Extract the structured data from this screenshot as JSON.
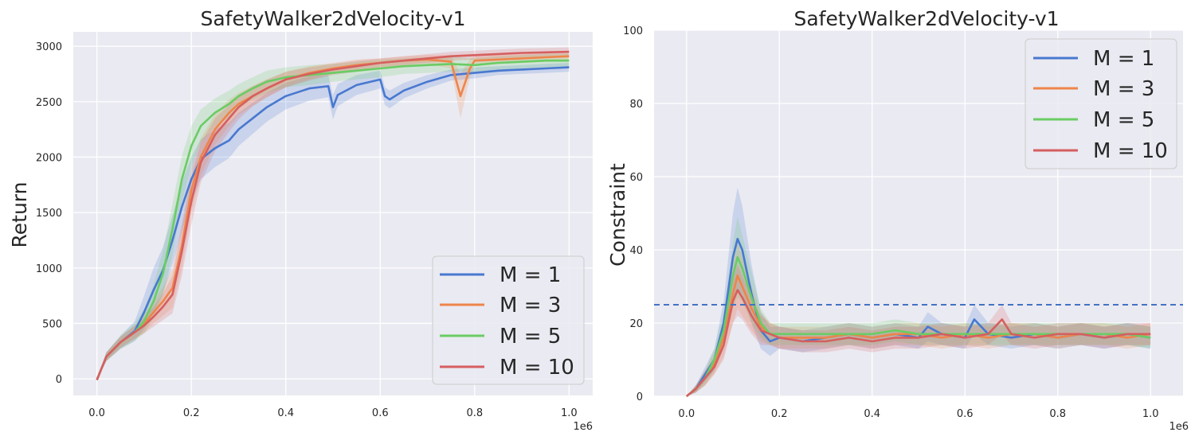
{
  "chart_data": [
    {
      "type": "line",
      "title": "SafetyWalker2dVelocity-v1",
      "xlabel": "",
      "ylabel": "Return",
      "x_multiplier_label": "1e6",
      "xlim": [
        -0.05,
        1.05
      ],
      "ylim": [
        -150,
        3130
      ],
      "xticks": [
        0.0,
        0.2,
        0.4,
        0.6,
        0.8,
        1.0
      ],
      "xtick_labels": [
        "0.0",
        "0.2",
        "0.4",
        "0.6",
        "0.8",
        "1.0"
      ],
      "yticks": [
        0,
        500,
        1000,
        1500,
        2000,
        2500,
        3000
      ],
      "ytick_labels": [
        "0",
        "500",
        "1000",
        "1500",
        "2000",
        "2500",
        "3000"
      ],
      "legend_position": "lower-right",
      "series": [
        {
          "name": "M = 1",
          "color": "#4878d0",
          "x": [
            0,
            0.02,
            0.05,
            0.08,
            0.1,
            0.12,
            0.14,
            0.16,
            0.18,
            0.2,
            0.22,
            0.25,
            0.28,
            0.3,
            0.33,
            0.36,
            0.4,
            0.45,
            0.49,
            0.5,
            0.51,
            0.55,
            0.6,
            0.61,
            0.62,
            0.65,
            0.7,
            0.75,
            0.8,
            0.85,
            0.9,
            0.95,
            1.0
          ],
          "y": [
            -10,
            200,
            330,
            430,
            600,
            800,
            980,
            1250,
            1550,
            1800,
            1980,
            2080,
            2150,
            2250,
            2350,
            2450,
            2550,
            2620,
            2640,
            2450,
            2560,
            2650,
            2700,
            2550,
            2520,
            2600,
            2680,
            2740,
            2760,
            2780,
            2790,
            2800,
            2810
          ],
          "band": [
            0,
            40,
            60,
            90,
            150,
            200,
            210,
            220,
            220,
            200,
            180,
            170,
            160,
            150,
            140,
            130,
            120,
            110,
            100,
            110,
            100,
            90,
            80,
            80,
            80,
            70,
            60,
            50,
            50,
            40,
            40,
            40,
            40
          ]
        },
        {
          "name": "M = 3",
          "color": "#ee854a",
          "x": [
            0,
            0.02,
            0.05,
            0.08,
            0.1,
            0.12,
            0.14,
            0.16,
            0.18,
            0.2,
            0.22,
            0.25,
            0.28,
            0.3,
            0.33,
            0.36,
            0.4,
            0.45,
            0.5,
            0.55,
            0.6,
            0.65,
            0.7,
            0.75,
            0.77,
            0.79,
            0.8,
            0.85,
            0.9,
            0.95,
            1.0
          ],
          "y": [
            -10,
            200,
            330,
            420,
            500,
            600,
            700,
            820,
            1200,
            1700,
            2000,
            2250,
            2400,
            2480,
            2550,
            2620,
            2700,
            2760,
            2800,
            2830,
            2850,
            2870,
            2880,
            2860,
            2550,
            2800,
            2870,
            2880,
            2890,
            2900,
            2910
          ],
          "band": [
            0,
            40,
            50,
            60,
            80,
            100,
            130,
            180,
            200,
            200,
            170,
            140,
            120,
            100,
            90,
            80,
            70,
            60,
            50,
            50,
            40,
            40,
            40,
            60,
            200,
            80,
            40,
            40,
            40,
            40,
            40
          ]
        },
        {
          "name": "M = 5",
          "color": "#6acc64",
          "x": [
            0,
            0.02,
            0.05,
            0.08,
            0.1,
            0.12,
            0.14,
            0.16,
            0.18,
            0.2,
            0.22,
            0.25,
            0.28,
            0.3,
            0.33,
            0.36,
            0.4,
            0.45,
            0.5,
            0.55,
            0.6,
            0.65,
            0.7,
            0.75,
            0.8,
            0.85,
            0.9,
            0.95,
            1.0
          ],
          "y": [
            -10,
            200,
            330,
            420,
            520,
            700,
            950,
            1350,
            1800,
            2100,
            2280,
            2400,
            2480,
            2550,
            2620,
            2680,
            2720,
            2740,
            2760,
            2780,
            2800,
            2820,
            2830,
            2840,
            2830,
            2850,
            2860,
            2870,
            2870
          ],
          "band": [
            0,
            40,
            60,
            80,
            110,
            150,
            200,
            230,
            210,
            180,
            150,
            130,
            120,
            110,
            100,
            100,
            90,
            90,
            80,
            80,
            80,
            70,
            70,
            70,
            60,
            60,
            60,
            60,
            60
          ]
        },
        {
          "name": "M = 10",
          "color": "#d65f5f",
          "x": [
            0,
            0.02,
            0.05,
            0.08,
            0.1,
            0.12,
            0.14,
            0.16,
            0.18,
            0.2,
            0.22,
            0.25,
            0.28,
            0.3,
            0.33,
            0.36,
            0.4,
            0.45,
            0.5,
            0.55,
            0.6,
            0.65,
            0.7,
            0.75,
            0.8,
            0.85,
            0.9,
            0.95,
            1.0
          ],
          "y": [
            -10,
            200,
            330,
            420,
            480,
            560,
            650,
            760,
            1150,
            1600,
            1950,
            2200,
            2350,
            2450,
            2550,
            2620,
            2700,
            2750,
            2790,
            2820,
            2850,
            2870,
            2890,
            2910,
            2920,
            2930,
            2940,
            2945,
            2950
          ],
          "band": [
            0,
            40,
            50,
            60,
            70,
            90,
            120,
            170,
            220,
            210,
            180,
            150,
            120,
            110,
            90,
            80,
            70,
            60,
            50,
            50,
            40,
            40,
            40,
            40,
            40,
            40,
            40,
            40,
            40
          ]
        }
      ]
    },
    {
      "type": "line",
      "title": "SafetyWalker2dVelocity-v1",
      "xlabel": "",
      "ylabel": "Constraint",
      "x_multiplier_label": "1e6",
      "xlim": [
        -0.07,
        1.07
      ],
      "ylim": [
        0,
        100
      ],
      "xticks": [
        0.0,
        0.2,
        0.4,
        0.6,
        0.8,
        1.0
      ],
      "xtick_labels": [
        "0.0",
        "0.2",
        "0.4",
        "0.6",
        "0.8",
        "1.0"
      ],
      "yticks": [
        0,
        20,
        40,
        60,
        80,
        100
      ],
      "ytick_labels": [
        "0",
        "20",
        "40",
        "60",
        "80",
        "100"
      ],
      "threshold": 25,
      "threshold_color": "#4472c4",
      "legend_position": "top-right",
      "series": [
        {
          "name": "M = 1",
          "color": "#4878d0",
          "x": [
            0,
            0.02,
            0.04,
            0.06,
            0.08,
            0.1,
            0.11,
            0.12,
            0.14,
            0.16,
            0.18,
            0.2,
            0.25,
            0.3,
            0.35,
            0.4,
            0.45,
            0.5,
            0.52,
            0.55,
            0.6,
            0.62,
            0.65,
            0.7,
            0.75,
            0.8,
            0.85,
            0.9,
            0.95,
            1.0
          ],
          "y": [
            0,
            2,
            6,
            10,
            20,
            38,
            43,
            40,
            28,
            18,
            15,
            16,
            15,
            16,
            17,
            16,
            17,
            16,
            19,
            17,
            16,
            21,
            17,
            16,
            17,
            16,
            17,
            16,
            17,
            16
          ],
          "band": [
            0,
            1,
            2,
            3,
            6,
            12,
            14,
            12,
            8,
            5,
            4,
            3,
            3,
            3,
            3,
            3,
            3,
            3,
            4,
            3,
            3,
            4,
            3,
            3,
            3,
            3,
            3,
            3,
            3,
            3
          ]
        },
        {
          "name": "M = 3",
          "color": "#ee854a",
          "x": [
            0,
            0.02,
            0.04,
            0.06,
            0.08,
            0.1,
            0.11,
            0.12,
            0.14,
            0.16,
            0.18,
            0.2,
            0.25,
            0.3,
            0.35,
            0.4,
            0.45,
            0.5,
            0.55,
            0.6,
            0.65,
            0.7,
            0.75,
            0.8,
            0.85,
            0.9,
            0.95,
            1.0
          ],
          "y": [
            0,
            2,
            5,
            9,
            16,
            28,
            33,
            30,
            24,
            19,
            17,
            16,
            16,
            16,
            17,
            16,
            17,
            17,
            16,
            17,
            16,
            17,
            17,
            16,
            17,
            17,
            16,
            17
          ],
          "band": [
            0,
            1,
            2,
            3,
            5,
            8,
            9,
            8,
            6,
            4,
            3,
            3,
            3,
            3,
            3,
            3,
            3,
            3,
            3,
            3,
            3,
            3,
            3,
            3,
            3,
            3,
            3,
            3
          ]
        },
        {
          "name": "M = 5",
          "color": "#6acc64",
          "x": [
            0,
            0.02,
            0.04,
            0.06,
            0.08,
            0.1,
            0.11,
            0.12,
            0.14,
            0.16,
            0.18,
            0.2,
            0.25,
            0.3,
            0.35,
            0.4,
            0.45,
            0.5,
            0.55,
            0.6,
            0.65,
            0.7,
            0.75,
            0.8,
            0.85,
            0.9,
            0.95,
            1.0
          ],
          "y": [
            0,
            2,
            5,
            10,
            18,
            33,
            38,
            35,
            27,
            20,
            17,
            17,
            17,
            17,
            17,
            17,
            18,
            17,
            17,
            17,
            17,
            17,
            17,
            17,
            17,
            17,
            17,
            16
          ],
          "band": [
            0,
            1,
            2,
            3,
            5,
            9,
            11,
            9,
            7,
            4,
            3,
            3,
            3,
            3,
            3,
            3,
            3,
            3,
            3,
            3,
            3,
            3,
            3,
            3,
            3,
            3,
            3,
            3
          ]
        },
        {
          "name": "M = 10",
          "color": "#d65f5f",
          "x": [
            0,
            0.02,
            0.04,
            0.06,
            0.08,
            0.1,
            0.11,
            0.12,
            0.14,
            0.16,
            0.18,
            0.2,
            0.25,
            0.3,
            0.35,
            0.4,
            0.45,
            0.5,
            0.55,
            0.6,
            0.65,
            0.68,
            0.7,
            0.75,
            0.8,
            0.85,
            0.9,
            0.95,
            1.0
          ],
          "y": [
            0,
            2,
            5,
            8,
            14,
            26,
            29,
            27,
            22,
            18,
            17,
            16,
            15,
            15,
            16,
            15,
            16,
            16,
            17,
            16,
            17,
            21,
            17,
            16,
            17,
            17,
            16,
            17,
            17
          ],
          "band": [
            0,
            1,
            2,
            2,
            4,
            6,
            7,
            6,
            5,
            4,
            3,
            3,
            3,
            3,
            3,
            3,
            3,
            3,
            3,
            3,
            3,
            4,
            3,
            3,
            3,
            3,
            3,
            3,
            3
          ]
        }
      ]
    }
  ]
}
